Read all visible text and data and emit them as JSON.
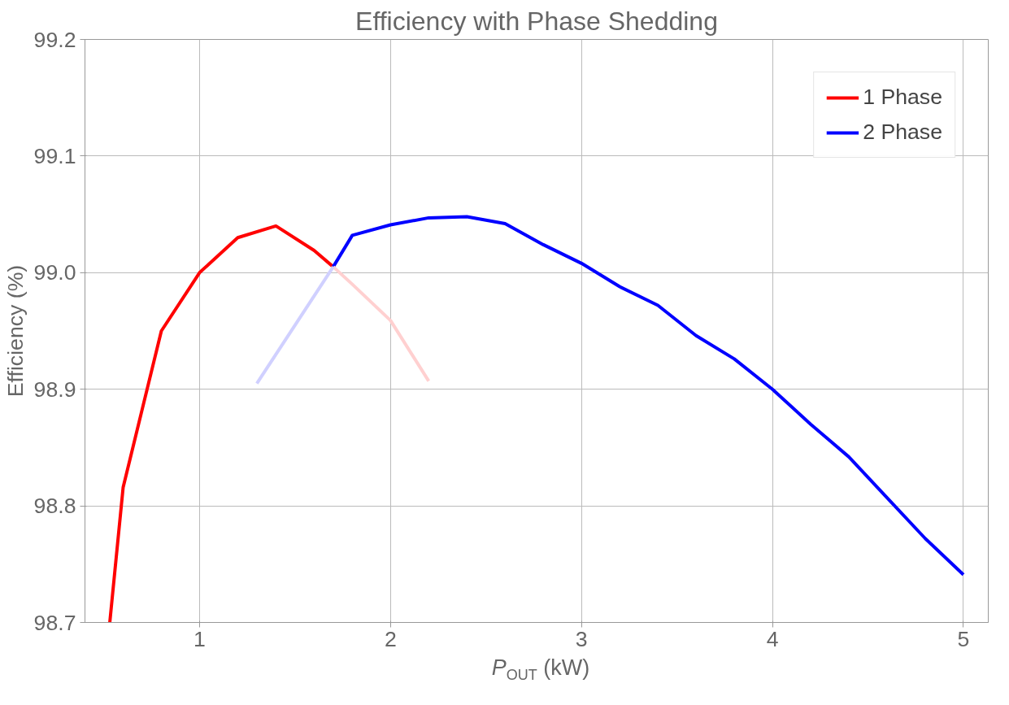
{
  "chart_data": {
    "type": "line",
    "title": "Efficiency with Phase Shedding",
    "xlabel": "P$_{OUT}$ (kW)",
    "ylabel": "Efficiency (%)",
    "series": [
      {
        "name": "1 Phase",
        "color": "#ff0000",
        "x": [
          0.53,
          0.6,
          0.8,
          1.0,
          1.2,
          1.4,
          1.6,
          1.7
        ],
        "values": [
          98.7,
          98.816,
          98.95,
          99.0,
          99.03,
          99.04,
          99.019,
          99.005
        ]
      },
      {
        "name": "2 Phase",
        "color": "#0000ff",
        "x": [
          1.7,
          1.8,
          2.0,
          2.2,
          2.4,
          2.6,
          2.8,
          3.0,
          3.2,
          3.4,
          3.6,
          3.8,
          4.0,
          4.2,
          4.4,
          4.6,
          4.8,
          5.0
        ],
        "values": [
          99.005,
          99.032,
          99.041,
          99.047,
          99.048,
          99.042,
          99.024,
          99.008,
          98.988,
          98.972,
          98.946,
          98.926,
          98.9,
          98.87,
          98.842,
          98.807,
          98.772,
          98.741
        ]
      },
      {
        "color": "#ffd0d0",
        "x": [
          1.7,
          1.8,
          2.0,
          2.2
        ],
        "values": [
          99.005,
          98.99,
          98.959,
          98.907
        ]
      },
      {
        "color": "#d0d0ff",
        "x": [
          1.3,
          1.5,
          1.7
        ],
        "values": [
          98.905,
          98.955,
          99.005
        ]
      }
    ],
    "xlim": [
      0.4,
      5.13
    ],
    "ylim": [
      98.7,
      99.2
    ],
    "xticks": [
      1,
      2,
      3,
      4,
      5
    ],
    "yticks": [
      98.7,
      98.8,
      98.9,
      {
        "value": 99.0,
        "label": "99.0"
      },
      99.1,
      99.2
    ],
    "grid": true,
    "legend": "top right",
    "line_style": "solid"
  }
}
